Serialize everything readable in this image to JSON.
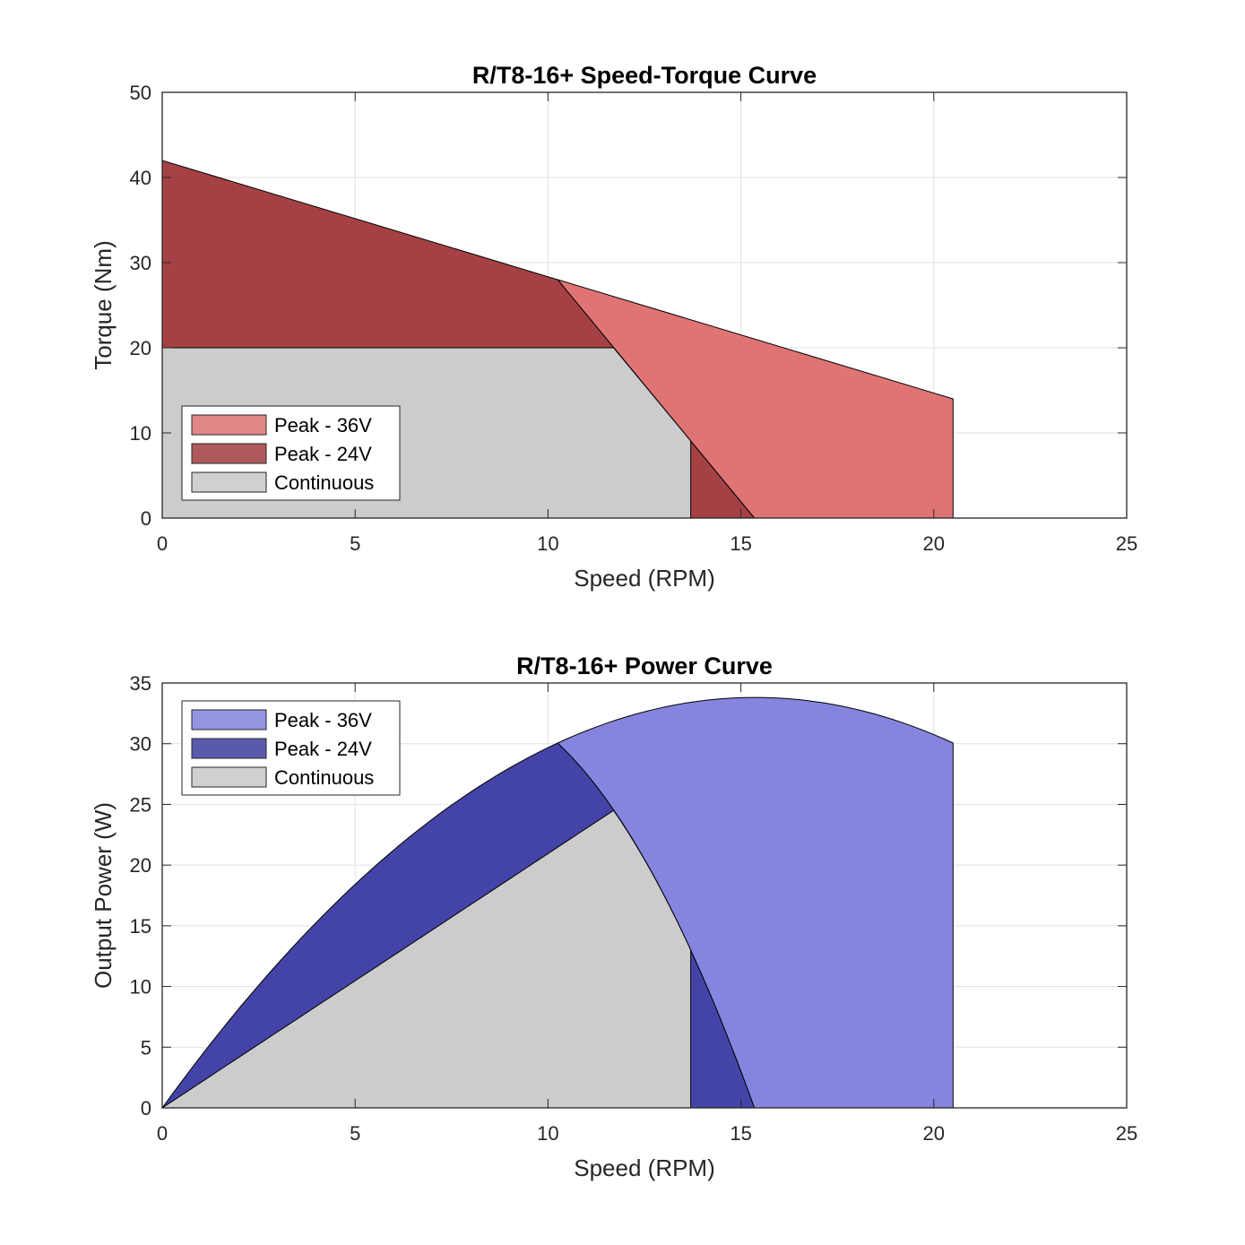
{
  "chart_data": [
    {
      "type": "area",
      "title": "R/T8-16+ Speed-Torque Curve",
      "xlabel": "Speed (RPM)",
      "ylabel": "Torque (Nm)",
      "xlim": [
        0,
        25
      ],
      "ylim": [
        0,
        50
      ],
      "xticks": [
        0,
        5,
        10,
        15,
        20,
        25
      ],
      "yticks": [
        0,
        10,
        20,
        30,
        40,
        50
      ],
      "grid": true,
      "legend_position": "bottom-left",
      "series": [
        {
          "name": "Peak - 24V",
          "color": "#a54144",
          "legend_color": "#ae5a5d",
          "points": [
            [
              0,
              0
            ],
            [
              0,
              42
            ],
            [
              10.25,
              28
            ],
            [
              15.35,
              0
            ]
          ]
        },
        {
          "name": "Peak - 36V",
          "color": "#e07475",
          "legend_color": "#e18787",
          "points": [
            [
              10.25,
              28
            ],
            [
              20.5,
              14
            ],
            [
              20.5,
              0
            ],
            [
              15.35,
              0
            ]
          ]
        },
        {
          "name": "Continuous",
          "color": "#cccccc",
          "legend_color": "#d0d0d0",
          "points": [
            [
              0,
              0
            ],
            [
              0,
              20
            ],
            [
              11.7,
              20
            ],
            [
              13.7,
              9.06
            ],
            [
              13.7,
              0
            ]
          ]
        }
      ],
      "legend_order": [
        "Peak - 36V",
        "Peak - 24V",
        "Continuous"
      ]
    },
    {
      "type": "area",
      "title": "R/T8-16+ Power Curve",
      "xlabel": "Speed (RPM)",
      "ylabel": "Output Power (W)",
      "xlim": [
        0,
        25
      ],
      "ylim": [
        0,
        35
      ],
      "xticks": [
        0,
        5,
        10,
        15,
        20,
        25
      ],
      "yticks": [
        0,
        5,
        10,
        15,
        20,
        25,
        30,
        35
      ],
      "grid": true,
      "legend_position": "top-left",
      "derived": "power = torque x speed x 2*pi/60 (from speed-torque regions)",
      "series": [
        {
          "name": "Peak - 24V",
          "color": "#4444a8",
          "legend_color": "#5a5aac",
          "peak_power": 30.0
        },
        {
          "name": "Peak - 36V",
          "color": "#8585e0",
          "legend_color": "#9494e2",
          "peak_power": 33.8
        },
        {
          "name": "Continuous",
          "color": "#cccccc",
          "legend_color": "#d0d0d0",
          "peak_power": 24.5
        }
      ],
      "legend_order": [
        "Peak - 36V",
        "Peak - 24V",
        "Continuous"
      ]
    }
  ]
}
